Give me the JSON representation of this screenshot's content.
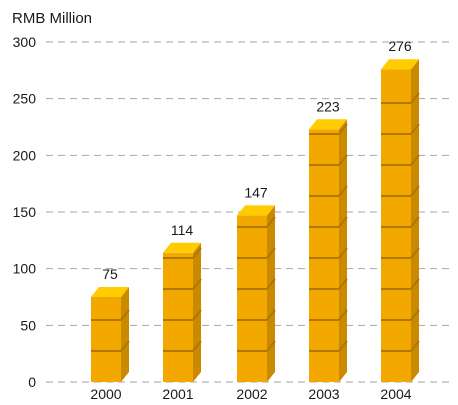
{
  "chart_data": {
    "type": "bar",
    "unit_label": "RMB Million",
    "categories": [
      "2000",
      "2001",
      "2002",
      "2003",
      "2004"
    ],
    "values": [
      75,
      114,
      147,
      223,
      276
    ],
    "data_labels": [
      "75",
      "114",
      "147",
      "223",
      "276"
    ],
    "ylim": [
      0,
      300
    ],
    "yticks": [
      "0",
      "50",
      "100",
      "150",
      "200",
      "250",
      "300"
    ],
    "grid": true,
    "legend": "none",
    "colors": {
      "front": "#F3A800",
      "top": "#FFCC00",
      "side": "#C98A00",
      "seam": "#B07800",
      "grid": "#A6A6A6"
    }
  }
}
